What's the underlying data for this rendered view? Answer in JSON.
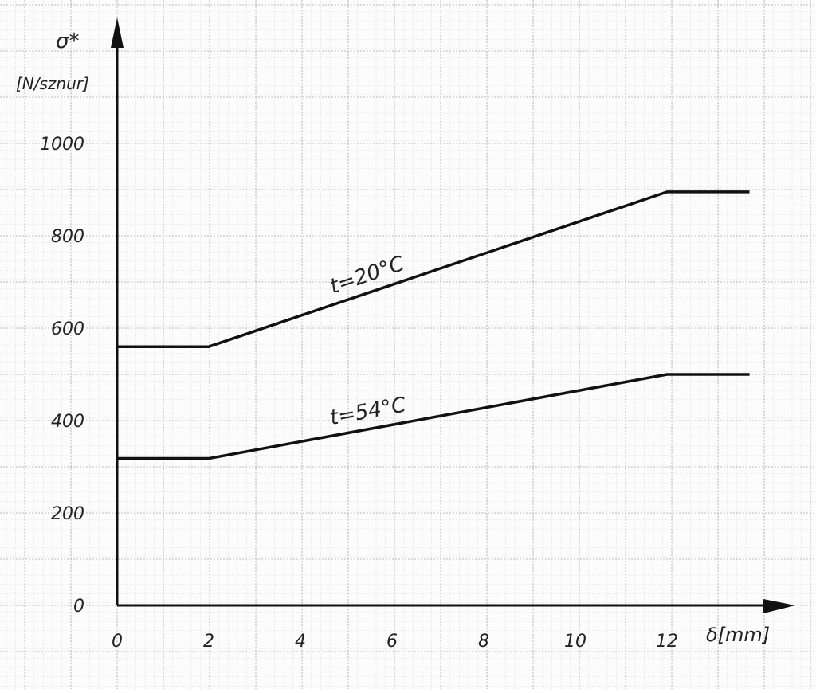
{
  "chart_data": {
    "type": "line",
    "y_title": {
      "symbol": "σ*",
      "unit": "[N/sznur]"
    },
    "x_title": "δ[mm]",
    "x_ticks": [
      "0",
      "2",
      "4",
      "6",
      "8",
      "10",
      "12"
    ],
    "y_ticks": [
      "0",
      "200",
      "400",
      "600",
      "800",
      "1000"
    ],
    "xlim": [
      0,
      14
    ],
    "ylim": [
      0,
      1200
    ],
    "grid": true,
    "series": [
      {
        "name": "t=20°C",
        "color": "#111111",
        "points": [
          [
            0,
            560
          ],
          [
            2,
            560
          ],
          [
            12,
            895
          ],
          [
            13.8,
            895
          ]
        ]
      },
      {
        "name": "t=54°C",
        "color": "#111111",
        "points": [
          [
            0,
            318
          ],
          [
            2,
            318
          ],
          [
            12,
            500
          ],
          [
            13.8,
            500
          ]
        ]
      }
    ]
  }
}
